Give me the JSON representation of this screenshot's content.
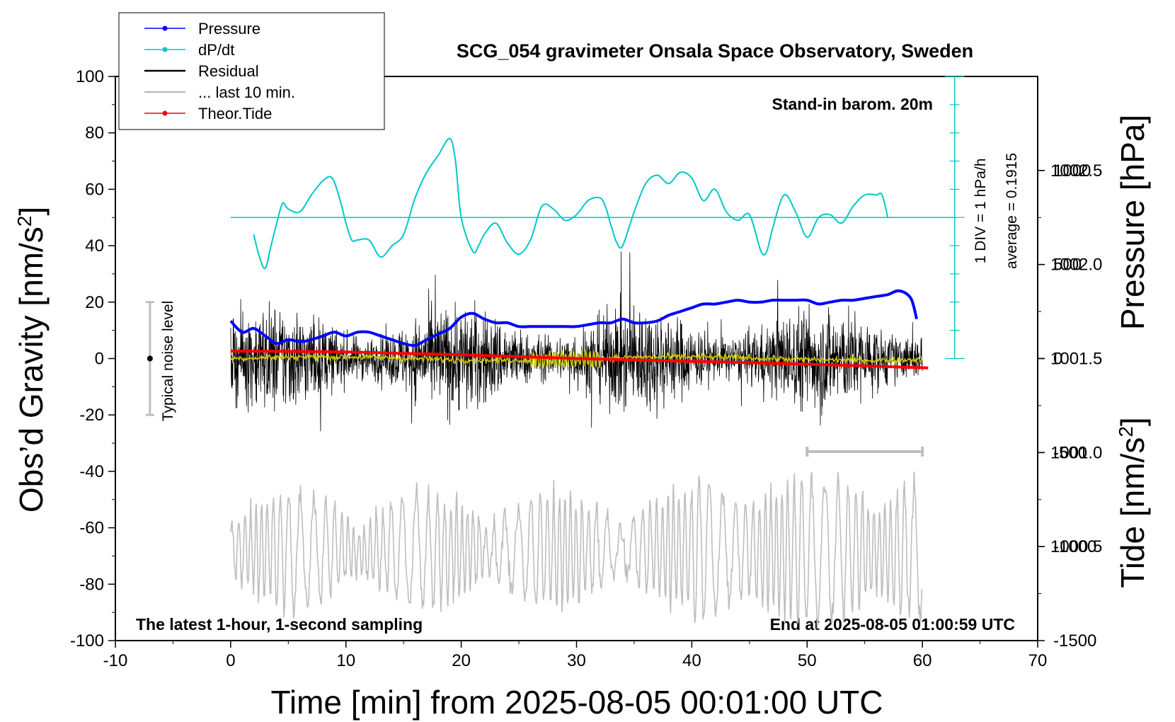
{
  "chart_data": {
    "type": "line",
    "title": "SCG_054 gravimeter Onsala Space Observatory, Sweden",
    "xlabel": "Time [min] from 2025-08-05 00:01:00 UTC",
    "ylabel_left_main": "Obs’d Gravity [nm/s",
    "ylabel_left_sup": "2",
    "ylabel_left_end": "]",
    "ylabel_right_pressure": "Pressure [hPa]",
    "ylabel_right_tide_main": "Tide [nm/s",
    "ylabel_right_tide_sup": "2",
    "ylabel_right_tide_end": "]",
    "xlim": [
      -10,
      70
    ],
    "ylim": [
      -100,
      100
    ],
    "pressure_lim": [
      1000.0,
      1003.0
    ],
    "tide_lim": [
      -1500,
      1500
    ],
    "x_ticks": [
      "-10",
      "0",
      "10",
      "20",
      "30",
      "40",
      "50",
      "60",
      "70"
    ],
    "y_ticks": [
      "100",
      "80",
      "60",
      "40",
      "20",
      "0",
      "-20",
      "-40",
      "-60",
      "-80",
      "-100"
    ],
    "pressure_ticks": [
      "1002.5",
      "1002.0",
      "1001.5",
      "1001.0",
      "1000.5"
    ],
    "tide_ticks": [
      "1000",
      "500",
      "0",
      "-500",
      "-1000",
      "-1500"
    ],
    "legend": [
      {
        "name": "Pressure",
        "color": "#0000ff",
        "marker": true
      },
      {
        "name": "dP/dt",
        "color": "#00c8c8",
        "marker": true
      },
      {
        "name": "Residual",
        "color": "#000000",
        "marker": false
      },
      {
        "name": "... last 10 min.",
        "color": "#bebebe",
        "marker": false
      },
      {
        "name": "Theor.Tide",
        "color": "#ff0000",
        "marker": true
      }
    ],
    "annotations": {
      "barometer": "Stand-in barom. 20m",
      "dpdt_scale": "1 DIV = 1 hPa/h",
      "dpdt_average": "average = 0.1915",
      "noise": "Typical noise level",
      "bottom_left": "The latest 1-hour, 1-second sampling",
      "bottom_right": "End at 2025-08-05 01:00:59 UTC"
    },
    "noise_bar_range": [
      -20,
      20
    ],
    "last10_bar_range": [
      50,
      60
    ],
    "series": [
      {
        "name": "Pressure",
        "axis": "pressure",
        "x": [
          0,
          1,
          2,
          3,
          4,
          5,
          6,
          7,
          8,
          9,
          10,
          11,
          12,
          13,
          14,
          15,
          16,
          17,
          18,
          19,
          20,
          21,
          22,
          23,
          24,
          25,
          26,
          27,
          28,
          29,
          30,
          31,
          32,
          33,
          34,
          35,
          36,
          37,
          38,
          39,
          40,
          41,
          42,
          43,
          44,
          45,
          46,
          47,
          48,
          49,
          50,
          51,
          52,
          53,
          54,
          55,
          56,
          57,
          58,
          59,
          59.5
        ],
        "values": [
          1001.7,
          1001.64,
          1001.66,
          1001.62,
          1001.58,
          1001.6,
          1001.59,
          1001.6,
          1001.62,
          1001.64,
          1001.62,
          1001.64,
          1001.64,
          1001.62,
          1001.6,
          1001.58,
          1001.57,
          1001.6,
          1001.63,
          1001.66,
          1001.72,
          1001.74,
          1001.71,
          1001.69,
          1001.69,
          1001.67,
          1001.67,
          1001.67,
          1001.67,
          1001.67,
          1001.67,
          1001.68,
          1001.69,
          1001.69,
          1001.71,
          1001.69,
          1001.69,
          1001.7,
          1001.73,
          1001.75,
          1001.77,
          1001.79,
          1001.79,
          1001.8,
          1001.81,
          1001.8,
          1001.8,
          1001.81,
          1001.81,
          1001.81,
          1001.81,
          1001.79,
          1001.8,
          1001.81,
          1001.81,
          1001.82,
          1001.83,
          1001.84,
          1001.86,
          1001.82,
          1001.71
        ]
      },
      {
        "name": "dP/dt",
        "axis": "gravity",
        "x": [
          2,
          2.5,
          3,
          3.5,
          4,
          4.5,
          5,
          6,
          7,
          8,
          8.8,
          9.5,
          10,
          10.5,
          11,
          12,
          13,
          14,
          15,
          16,
          17,
          18,
          19,
          19.5,
          20,
          21,
          21.5,
          22,
          23,
          24,
          25,
          26,
          27,
          28,
          29,
          30,
          31,
          32,
          32.5,
          33,
          33.5,
          34,
          35,
          36,
          37,
          38,
          39,
          40,
          41,
          42,
          43,
          44,
          45,
          46,
          46.5,
          47,
          48,
          49,
          50,
          51,
          52,
          53,
          54,
          55,
          56,
          56.5,
          57
        ],
        "values": [
          44,
          36,
          32,
          40,
          48,
          55,
          53,
          52,
          58,
          63,
          64,
          56,
          48,
          42,
          42,
          42,
          36,
          40,
          44,
          57,
          66,
          72,
          78,
          70,
          50,
          38,
          40,
          44,
          48,
          41,
          37,
          42,
          54,
          53,
          49,
          51,
          56,
          57,
          54,
          47,
          41,
          40,
          52,
          62,
          65,
          62,
          66,
          64,
          56,
          60,
          52,
          49,
          51,
          38,
          38,
          46,
          58,
          52,
          43,
          50,
          51,
          48,
          54,
          58,
          58,
          58,
          50
        ]
      },
      {
        "name": "Theor.Tide",
        "axis": "tide",
        "x": [
          0,
          10,
          20,
          30,
          40,
          50,
          60.5
        ],
        "values": [
          40,
          35,
          20,
          0,
          -15,
          -30,
          -50
        ]
      }
    ]
  }
}
